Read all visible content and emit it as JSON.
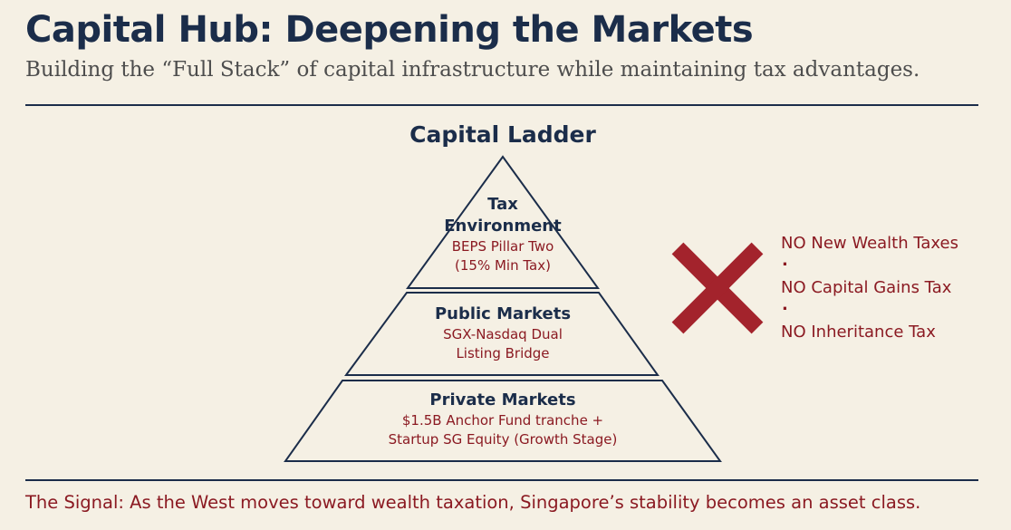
{
  "header": {
    "title": "Capital Hub: Deepening the Markets",
    "subtitle": "Building the “Full Stack” of capital infrastructure while maintaining tax advantages."
  },
  "ladder": {
    "title": "Capital Ladder",
    "tiers": [
      {
        "heading_line1": "Tax",
        "heading_line2": "Environment",
        "detail_line1": "BEPS Pillar Two",
        "detail_line2": "(15% Min Tax)"
      },
      {
        "heading": "Public Markets",
        "detail_line1": "SGX-Nasdaq Dual",
        "detail_line2": "Listing Bridge"
      },
      {
        "heading": "Private Markets",
        "detail_line1": "$1.5B Anchor Fund tranche +",
        "detail_line2": "Startup SG Equity (Growth Stage)"
      }
    ]
  },
  "taxes": {
    "items": [
      "NO New Wealth Taxes",
      "NO Capital Gains Tax",
      "NO Inheritance Tax"
    ],
    "separator": "."
  },
  "footer": {
    "signal": "The Signal: As the West moves toward wealth taxation, Singapore’s stability becomes an asset class."
  },
  "colors": {
    "background": "#f5f0e4",
    "navy": "#1b2d4a",
    "accent_red": "#8b1a22"
  }
}
